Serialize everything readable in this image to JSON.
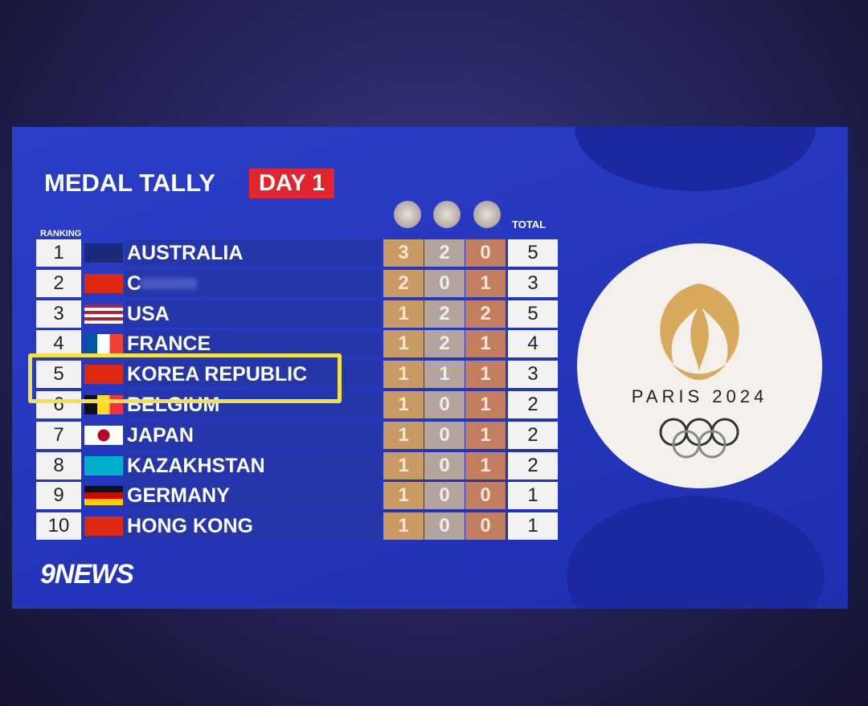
{
  "header": {
    "title": "MEDAL TALLY",
    "badge": "DAY 1"
  },
  "table": {
    "ranking_label": "RANKING",
    "total_label": "TOTAL",
    "rows": [
      {
        "rank": 1,
        "country": "AUSTRALIA",
        "gold": 3,
        "silver": 2,
        "bronze": 0,
        "total": 5
      },
      {
        "rank": 2,
        "country": "C",
        "gold": 2,
        "silver": 0,
        "bronze": 1,
        "total": 3
      },
      {
        "rank": 3,
        "country": "USA",
        "gold": 1,
        "silver": 2,
        "bronze": 2,
        "total": 5
      },
      {
        "rank": 4,
        "country": "FRANCE",
        "gold": 1,
        "silver": 2,
        "bronze": 1,
        "total": 4
      },
      {
        "rank": 5,
        "country": "KOREA REPUBLIC",
        "gold": 1,
        "silver": 1,
        "bronze": 1,
        "total": 3
      },
      {
        "rank": 6,
        "country": "BELGIUM",
        "gold": 1,
        "silver": 0,
        "bronze": 1,
        "total": 2
      },
      {
        "rank": 7,
        "country": "JAPAN",
        "gold": 1,
        "silver": 0,
        "bronze": 1,
        "total": 2
      },
      {
        "rank": 8,
        "country": "KAZAKHSTAN",
        "gold": 1,
        "silver": 0,
        "bronze": 1,
        "total": 2
      },
      {
        "rank": 9,
        "country": "GERMANY",
        "gold": 1,
        "silver": 0,
        "bronze": 0,
        "total": 1
      },
      {
        "rank": 10,
        "country": "HONG KONG",
        "gold": 1,
        "silver": 0,
        "bronze": 0,
        "total": 1
      }
    ]
  },
  "logo": {
    "text": "PARIS 2024"
  },
  "footer": {
    "brand": "9NEWS"
  }
}
